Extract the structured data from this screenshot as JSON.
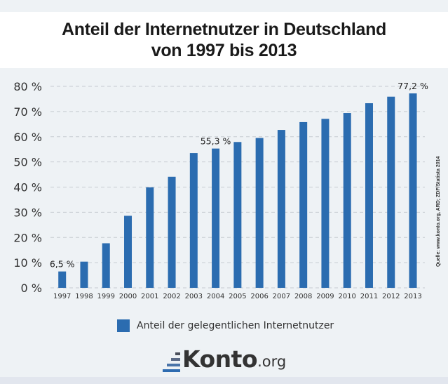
{
  "header": {
    "title_line1": "Anteil der Internetnutzer in Deutschland",
    "title_line2": "von 1997 bis 2013"
  },
  "source": "Quelle: www.konto.org, ARD; ZDF/Statista 2014",
  "logo": {
    "name": "Konto",
    "tld": ".org"
  },
  "colors": {
    "bar": "#2b6cb0",
    "grid": "#c6cbd1",
    "background": "#eef2f5"
  },
  "chart_data": {
    "type": "bar",
    "title": "Anteil der Internetnutzer in Deutschland von 1997 bis 2013",
    "xlabel": "",
    "ylabel": "",
    "categories": [
      "1997",
      "1998",
      "1999",
      "2000",
      "2001",
      "2002",
      "2003",
      "2004",
      "2005",
      "2006",
      "2007",
      "2008",
      "2009",
      "2010",
      "2011",
      "2012",
      "2013"
    ],
    "series": [
      {
        "name": "Anteil der gelegentlichen Internetnutzer",
        "values": [
          6.5,
          10.4,
          17.7,
          28.6,
          39.9,
          44.1,
          53.5,
          55.3,
          57.9,
          59.5,
          62.7,
          65.8,
          67.1,
          69.4,
          73.3,
          75.9,
          77.2
        ]
      }
    ],
    "ylim": [
      0,
      80
    ],
    "yticks": [
      0,
      10,
      20,
      30,
      40,
      50,
      60,
      70,
      80
    ],
    "ytick_labels": [
      "0 %",
      "10 %",
      "20 %",
      "30 %",
      "40 %",
      "50 %",
      "60 %",
      "70 %",
      "80 %"
    ],
    "grid": true,
    "grid_style": "dashed",
    "legend": {
      "position": "bottom-center",
      "entries": [
        "Anteil der gelegentlichen Internetnutzer"
      ]
    },
    "data_labels": [
      {
        "category": "1997",
        "text": "6,5 %"
      },
      {
        "category": "2004",
        "text": "55,3 %"
      },
      {
        "category": "2013",
        "text": "77,2 %"
      }
    ]
  }
}
